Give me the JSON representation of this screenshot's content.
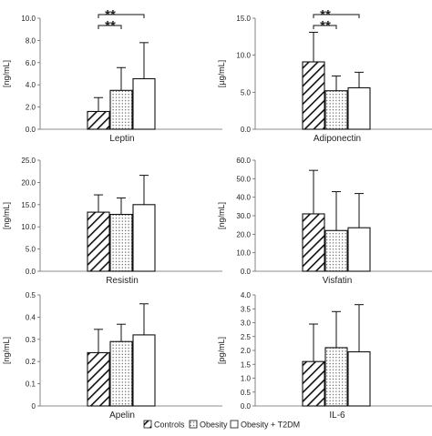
{
  "chart_data": [
    {
      "type": "bar",
      "categories": [
        "Controls",
        "Obesity",
        "Obesity + T2DM"
      ],
      "values": [
        1.6,
        3.5,
        4.55
      ],
      "errors": [
        1.25,
        2.05,
        3.25
      ],
      "title": "Leptin",
      "xlabel": "Leptin",
      "ylabel": "[ng/mL]",
      "ylim": [
        0,
        10
      ],
      "ticks": [
        "0.0",
        "2.0",
        "4.0",
        "6.0",
        "8.0",
        "10.0"
      ],
      "grid": false,
      "significance": [
        {
          "from": 0,
          "to": 2,
          "label": "**"
        },
        {
          "from": 0,
          "to": 1,
          "label": "**"
        }
      ]
    },
    {
      "type": "bar",
      "categories": [
        "Controls",
        "Obesity",
        "Obesity + T2DM"
      ],
      "values": [
        9.1,
        5.2,
        5.6
      ],
      "errors": [
        4.0,
        2.0,
        2.1
      ],
      "title": "Adiponectin",
      "xlabel": "Adiponectin",
      "ylabel": "[µg/mL]",
      "ylim": [
        0,
        15
      ],
      "ticks": [
        "0.0",
        "5.0",
        "10.0",
        "15.0"
      ],
      "grid": false,
      "significance": [
        {
          "from": 0,
          "to": 2,
          "label": "**"
        },
        {
          "from": 0,
          "to": 1,
          "label": "**"
        }
      ]
    },
    {
      "type": "bar",
      "categories": [
        "Controls",
        "Obesity",
        "Obesity + T2DM"
      ],
      "values": [
        13.3,
        12.8,
        15.0
      ],
      "errors": [
        3.9,
        3.7,
        6.6
      ],
      "title": "Resistin",
      "xlabel": "Resistin",
      "ylabel": "[ng/mL]",
      "ylim": [
        0,
        25
      ],
      "ticks": [
        "0.0",
        "5.0",
        "10.0",
        "15.0",
        "20.0",
        "25.0"
      ],
      "grid": false,
      "significance": []
    },
    {
      "type": "bar",
      "categories": [
        "Controls",
        "Obesity",
        "Obesity + T2DM"
      ],
      "values": [
        31.0,
        22.0,
        23.5
      ],
      "errors": [
        23.5,
        21.0,
        18.5
      ],
      "title": "Visfatin",
      "xlabel": "Visfatin",
      "ylabel": "[ng/mL]",
      "ylim": [
        0,
        60
      ],
      "ticks": [
        "0.0",
        "10.0",
        "20.0",
        "30.0",
        "40.0",
        "50.0",
        "60.0"
      ],
      "grid": false,
      "significance": []
    },
    {
      "type": "bar",
      "categories": [
        "Controls",
        "Obesity",
        "Obesity + T2DM"
      ],
      "values": [
        0.24,
        0.29,
        0.32
      ],
      "errors": [
        0.105,
        0.078,
        0.14
      ],
      "title": "Apelin",
      "xlabel": "Apelin",
      "ylabel": "[ng/mL]",
      "ylim": [
        0,
        0.5
      ],
      "ticks": [
        "0",
        "0.1",
        "0.2",
        "0.3",
        "0.4",
        "0.5"
      ],
      "grid": false,
      "significance": []
    },
    {
      "type": "bar",
      "categories": [
        "Controls",
        "Obesity",
        "Obesity + T2DM"
      ],
      "values": [
        1.6,
        2.1,
        1.95
      ],
      "errors": [
        1.35,
        1.3,
        1.7
      ],
      "title": "IL-6",
      "xlabel": "IL-6",
      "ylabel": "[pg/mL]",
      "ylim": [
        0,
        4
      ],
      "ticks": [
        "0.0",
        "0.5",
        "1.0",
        "1.5",
        "2.0",
        "2.5",
        "3.0",
        "3.5",
        "4.0"
      ],
      "grid": false,
      "significance": []
    }
  ],
  "legend": {
    "placement": "bottom-center",
    "items": [
      {
        "label": "Controls",
        "pattern": "hatch"
      },
      {
        "label": "Obesity",
        "pattern": "dots"
      },
      {
        "label": "Obesity + T2DM",
        "pattern": "empty"
      }
    ]
  },
  "colors": {
    "ink": "#111111",
    "background": "#ffffff"
  }
}
